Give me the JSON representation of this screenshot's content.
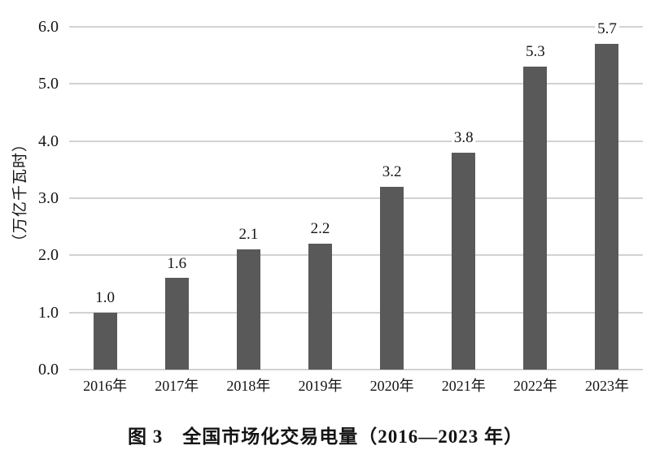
{
  "colors": {
    "bar": "#595959",
    "gridline": "#d2d2d2",
    "text": "#141414",
    "background": "#ffffff"
  },
  "chart_data": {
    "type": "bar",
    "title": "图 3　全国市场化交易电量（2016—2023 年）",
    "xlabel": "",
    "ylabel": "（万亿千瓦时）",
    "categories": [
      "2016年",
      "2017年",
      "2018年",
      "2019年",
      "2020年",
      "2021年",
      "2022年",
      "2023年"
    ],
    "values": [
      1.0,
      1.6,
      2.1,
      2.2,
      3.2,
      3.8,
      5.3,
      5.7
    ],
    "value_labels": [
      "1.0",
      "1.6",
      "2.1",
      "2.2",
      "3.2",
      "3.8",
      "5.3",
      "5.7"
    ],
    "ylim": [
      0,
      6
    ],
    "ytick_values": [
      0,
      1,
      2,
      3,
      4,
      5,
      6
    ],
    "ytick_labels": [
      "0.0",
      "1.0",
      "2.0",
      "3.0",
      "4.0",
      "5.0",
      "6.0"
    ],
    "grid": "horizontal",
    "legend": "none"
  }
}
